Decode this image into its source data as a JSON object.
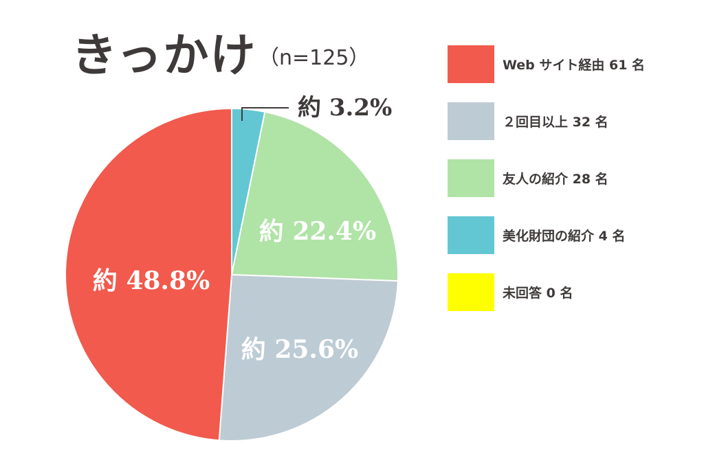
{
  "title": "きっかけ",
  "subtitle": "（n=125）",
  "legend": [
    {
      "label": "Web サイト経由 61 名",
      "color": "#f15a4c"
    },
    {
      "label": "２回目以上 32 名",
      "color": "#bdcbd4"
    },
    {
      "label": "友人の紹介 28 名",
      "color": "#b0e3a6"
    },
    {
      "label": "美化財団の紹介 4 名",
      "color": "#62c7d3"
    },
    {
      "label": "未回答 0 名",
      "color": "#ffff00"
    }
  ],
  "chart_data": {
    "type": "pie",
    "title": "きっかけ",
    "subtitle": "（n=125）",
    "start_angle": "top",
    "direction": "clockwise",
    "slices": [
      {
        "name": "美化財団の紹介",
        "count": 4,
        "percent": 3.2,
        "label": "約 3.2%",
        "color": "#62c7d3"
      },
      {
        "name": "友人の紹介",
        "count": 28,
        "percent": 22.4,
        "label": "約 22.4%",
        "color": "#b0e3a6"
      },
      {
        "name": "２回目以上",
        "count": 32,
        "percent": 25.6,
        "label": "約 25.6%",
        "color": "#bdcbd4"
      },
      {
        "name": "Web サイト経由",
        "count": 61,
        "percent": 48.8,
        "label": "約 48.8%",
        "color": "#f15a4c"
      },
      {
        "name": "未回答",
        "count": 0,
        "percent": 0,
        "label": "",
        "color": "#ffff00"
      }
    ]
  }
}
